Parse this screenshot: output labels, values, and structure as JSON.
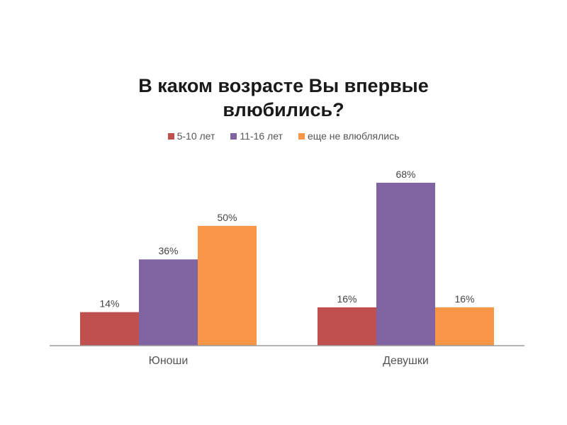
{
  "chart_data": {
    "type": "bar",
    "title": "В каком возрасте Вы впервые влюбились?",
    "title_lines": [
      "В каком возрасте Вы впервые",
      "влюбились?"
    ],
    "categories": [
      "Юноши",
      "Девушки"
    ],
    "series": [
      {
        "name": "5-10 лет",
        "color": "#c0504d",
        "values": [
          14,
          16
        ],
        "labels": [
          "14%",
          "16%"
        ]
      },
      {
        "name": "11-16 лет",
        "color": "#8064a2",
        "values": [
          36,
          68
        ],
        "labels": [
          "36%",
          "68%"
        ]
      },
      {
        "name": "еще не влюблялись",
        "color": "#f79646",
        "values": [
          50,
          16
        ],
        "labels": [
          "50%",
          "16%"
        ]
      }
    ],
    "ylim": [
      0,
      80
    ],
    "grid": false,
    "legend_position": "top"
  }
}
